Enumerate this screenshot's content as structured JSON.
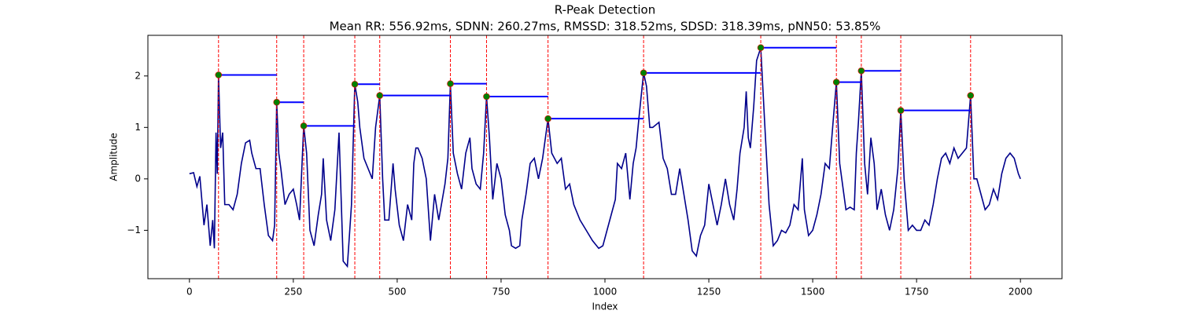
{
  "chart_data": {
    "type": "line",
    "title": "R-Peak Detection",
    "subtitle": "Mean RR: 556.92ms, SDNN: 260.27ms, RMSSD: 318.52ms, SDSD: 318.39ms, pNN50: 53.85%",
    "xlabel": "Index",
    "ylabel": "Amplitude",
    "xlim": [
      -100,
      2100
    ],
    "ylim": [
      -1.94,
      2.79
    ],
    "xticks": [
      0,
      250,
      500,
      750,
      1000,
      1250,
      1500,
      1750,
      2000
    ],
    "yticks": [
      {
        "value": -1,
        "label": "−1"
      },
      0,
      1,
      2
    ],
    "color": "#00008b",
    "x": [
      0,
      10,
      18,
      25,
      35,
      42,
      50,
      56,
      60,
      64,
      67,
      70,
      75,
      80,
      85,
      95,
      105,
      115,
      125,
      135,
      145,
      150,
      160,
      170,
      180,
      190,
      200,
      205,
      210,
      215,
      220,
      230,
      240,
      250,
      258,
      265,
      275,
      282,
      290,
      300,
      310,
      318,
      322,
      330,
      340,
      350,
      360,
      370,
      380,
      390,
      398,
      405,
      410,
      420,
      430,
      440,
      448,
      458,
      465,
      470,
      480,
      490,
      495,
      505,
      515,
      525,
      535,
      540,
      545,
      550,
      560,
      570,
      580,
      590,
      600,
      615,
      622,
      628,
      635,
      645,
      655,
      665,
      675,
      680,
      690,
      700,
      708,
      715,
      722,
      730,
      740,
      750,
      760,
      770,
      775,
      785,
      795,
      800,
      810,
      820,
      830,
      840,
      850,
      863,
      872,
      885,
      895,
      905,
      915,
      925,
      940,
      955,
      970,
      985,
      995,
      1005,
      1015,
      1025,
      1030,
      1040,
      1050,
      1060,
      1068,
      1075,
      1082,
      1093,
      1100,
      1108,
      1115,
      1130,
      1140,
      1150,
      1160,
      1170,
      1180,
      1190,
      1200,
      1210,
      1220,
      1230,
      1240,
      1250,
      1260,
      1270,
      1280,
      1290,
      1300,
      1310,
      1318,
      1325,
      1335,
      1340,
      1345,
      1350,
      1358,
      1365,
      1375,
      1385,
      1395,
      1405,
      1415,
      1425,
      1435,
      1445,
      1455,
      1465,
      1475,
      1480,
      1490,
      1500,
      1510,
      1520,
      1530,
      1540,
      1550,
      1557,
      1565,
      1575,
      1580,
      1590,
      1600,
      1605,
      1610,
      1617,
      1625,
      1632,
      1640,
      1648,
      1655,
      1665,
      1675,
      1685,
      1695,
      1705,
      1712,
      1720,
      1730,
      1740,
      1750,
      1760,
      1770,
      1780,
      1790,
      1800,
      1810,
      1820,
      1830,
      1840,
      1850,
      1860,
      1870,
      1880,
      1888,
      1895,
      1905,
      1915,
      1925,
      1935,
      1945,
      1955,
      1965,
      1975,
      1985,
      1995,
      2000
    ],
    "values": [
      0.1,
      0.12,
      -0.15,
      0.05,
      -0.9,
      -0.5,
      -1.3,
      -0.8,
      -1.35,
      0.9,
      0.1,
      2.02,
      0.6,
      0.9,
      -0.5,
      -0.5,
      -0.6,
      -0.3,
      0.3,
      0.7,
      0.75,
      0.5,
      0.2,
      0.2,
      -0.5,
      -1.1,
      -1.2,
      -0.9,
      1.49,
      0.5,
      0.2,
      -0.5,
      -0.3,
      -0.2,
      -0.5,
      -0.8,
      1.03,
      0.5,
      -1.0,
      -1.3,
      -0.7,
      -0.3,
      0.4,
      -0.8,
      -1.2,
      -0.6,
      0.9,
      -1.6,
      -1.7,
      -0.5,
      1.84,
      1.5,
      1.0,
      0.4,
      0.2,
      0.0,
      1.0,
      1.62,
      0.0,
      -0.8,
      -0.8,
      0.3,
      -0.2,
      -0.9,
      -1.2,
      -0.5,
      -0.8,
      0.3,
      0.6,
      0.6,
      0.4,
      0.0,
      -1.2,
      -0.3,
      -0.8,
      -0.1,
      0.4,
      1.85,
      0.5,
      0.1,
      -0.2,
      0.5,
      0.8,
      0.2,
      -0.1,
      -0.2,
      0.5,
      1.6,
      0.8,
      -0.4,
      0.3,
      0.0,
      -0.7,
      -1.0,
      -1.3,
      -1.35,
      -1.3,
      -0.8,
      -0.3,
      0.3,
      0.4,
      0.0,
      0.4,
      1.17,
      0.5,
      0.3,
      0.4,
      -0.2,
      -0.1,
      -0.5,
      -0.8,
      -1.0,
      -1.2,
      -1.35,
      -1.3,
      -1.0,
      -0.7,
      -0.4,
      0.3,
      0.2,
      0.5,
      -0.4,
      0.3,
      0.6,
      1.2,
      2.06,
      1.8,
      1.0,
      1.0,
      1.1,
      0.4,
      0.2,
      -0.3,
      -0.3,
      0.2,
      -0.3,
      -0.8,
      -1.4,
      -1.5,
      -1.1,
      -0.9,
      -0.1,
      -0.5,
      -0.9,
      -0.5,
      0.0,
      -0.5,
      -0.8,
      -0.2,
      0.5,
      1.0,
      1.7,
      0.8,
      0.6,
      1.4,
      2.3,
      2.55,
      1.0,
      -0.5,
      -1.3,
      -1.2,
      -1.0,
      -1.05,
      -0.9,
      -0.5,
      -0.6,
      0.4,
      -0.6,
      -1.1,
      -1.0,
      -0.7,
      -0.3,
      0.3,
      0.2,
      1.2,
      1.88,
      0.3,
      -0.3,
      -0.6,
      -0.55,
      -0.6,
      0.5,
      1.1,
      2.1,
      0.3,
      -0.3,
      0.8,
      0.3,
      -0.6,
      -0.2,
      -0.7,
      -1.0,
      -0.6,
      0.2,
      1.33,
      0.0,
      -1.0,
      -0.9,
      -1.0,
      -1.0,
      -0.8,
      -0.9,
      -0.5,
      0.0,
      0.4,
      0.5,
      0.3,
      0.6,
      0.4,
      0.5,
      0.6,
      1.62,
      0.0,
      0.0,
      -0.3,
      -0.6,
      -0.5,
      -0.2,
      -0.4,
      0.1,
      0.4,
      0.5,
      0.4,
      0.1,
      0.0
    ],
    "peaks": {
      "x": [
        70,
        210,
        275,
        398,
        458,
        628,
        715,
        863,
        1093,
        1375,
        1557,
        1617,
        1712,
        1880
      ],
      "values": [
        2.02,
        1.49,
        1.03,
        1.84,
        1.62,
        1.85,
        1.6,
        1.17,
        2.06,
        2.55,
        1.88,
        2.1,
        1.33,
        1.62
      ],
      "color": "green",
      "line_color": "red",
      "interval_color": "blue"
    }
  }
}
